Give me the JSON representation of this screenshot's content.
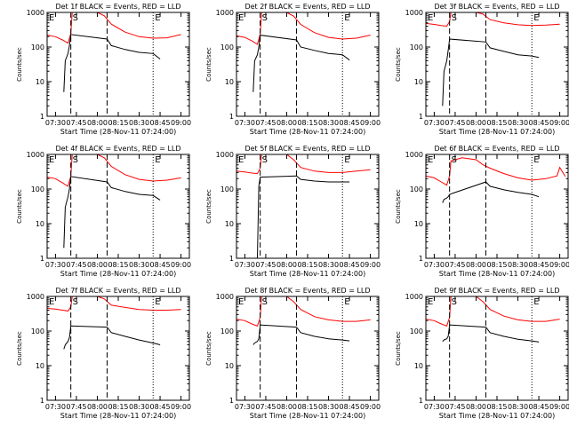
{
  "chart_data": [
    {
      "type": "line",
      "title": "Det 1f BLACK = Events, RED = LLD",
      "xlabel": "Start Time (28-Nov-11 07:24:00)",
      "ylabel": "Counts/sec",
      "log_y": true,
      "ylim": [
        1,
        1000
      ],
      "xlim": [
        "07:24",
        "09:06"
      ],
      "x_ticks": [
        "07:30",
        "07:45",
        "08:00",
        "08:15",
        "08:30",
        "08:45",
        "09:00"
      ],
      "y_ticks": [
        "1",
        "10",
        "100",
        "1000"
      ],
      "markers": [
        {
          "label": "E",
          "time": "07:24",
          "style": "dotted"
        },
        {
          "label": "S",
          "time": "07:41",
          "style": "dashed"
        },
        {
          "label": "",
          "time": "08:07",
          "style": "dashed"
        },
        {
          "label": "E",
          "time": "08:40",
          "style": "dotted"
        }
      ],
      "series": [
        {
          "color": "#ff0000",
          "time": [
            "07:24",
            "07:30",
            "07:35",
            "07:39",
            "07:41",
            "07:42",
            "07:50",
            "08:00",
            "08:05",
            "08:10",
            "08:20",
            "08:30",
            "08:40",
            "08:50",
            "09:00"
          ],
          "values": [
            220,
            200,
            160,
            130,
            250,
            1000,
            1000,
            1000,
            800,
            460,
            270,
            200,
            180,
            185,
            230
          ]
        },
        {
          "color": "#000000",
          "time": [
            "07:36",
            "07:37",
            "07:39",
            "07:40",
            "07:41",
            "08:07",
            "08:10",
            "08:20",
            "08:30",
            "08:40",
            "08:45"
          ],
          "values": [
            5,
            40,
            65,
            110,
            230,
            170,
            110,
            85,
            70,
            65,
            45
          ]
        }
      ]
    },
    {
      "type": "line",
      "title": "Det 2f BLACK = Events, RED = LLD",
      "xlabel": "Start Time (28-Nov-11 07:24:00)",
      "ylabel": "Counts/sec",
      "log_y": true,
      "ylim": [
        1,
        1000
      ],
      "xlim": [
        "07:24",
        "09:06"
      ],
      "x_ticks": [
        "07:30",
        "07:45",
        "08:00",
        "08:15",
        "08:30",
        "08:45",
        "09:00"
      ],
      "y_ticks": [
        "1",
        "10",
        "100",
        "1000"
      ],
      "markers": [
        {
          "label": "E",
          "time": "07:24",
          "style": "dotted"
        },
        {
          "label": "S",
          "time": "07:41",
          "style": "dashed"
        },
        {
          "label": "",
          "time": "08:07",
          "style": "dashed"
        },
        {
          "label": "E",
          "time": "08:40",
          "style": "dotted"
        }
      ],
      "series": [
        {
          "color": "#ff0000",
          "time": [
            "07:24",
            "07:30",
            "07:35",
            "07:39",
            "07:41",
            "07:42",
            "07:50",
            "08:00",
            "08:05",
            "08:10",
            "08:20",
            "08:30",
            "08:40",
            "08:50",
            "09:00"
          ],
          "values": [
            210,
            190,
            150,
            120,
            240,
            1000,
            1000,
            1000,
            780,
            450,
            260,
            190,
            170,
            180,
            220
          ]
        },
        {
          "color": "#000000",
          "time": [
            "07:36",
            "07:37",
            "07:39",
            "07:40",
            "07:41",
            "08:07",
            "08:10",
            "08:20",
            "08:30",
            "08:40",
            "08:45"
          ],
          "values": [
            5,
            40,
            60,
            100,
            220,
            160,
            100,
            80,
            65,
            60,
            42
          ]
        }
      ]
    },
    {
      "type": "line",
      "title": "Det 3f BLACK = Events, RED = LLD",
      "xlabel": "Start Time (28-Nov-11 07:24:00)",
      "ylabel": "Counts/sec",
      "log_y": true,
      "ylim": [
        1,
        1000
      ],
      "xlim": [
        "07:24",
        "09:06"
      ],
      "x_ticks": [
        "07:30",
        "07:45",
        "08:00",
        "08:15",
        "08:30",
        "08:45",
        "09:00"
      ],
      "y_ticks": [
        "1",
        "10",
        "100",
        "1000"
      ],
      "markers": [
        {
          "label": "E",
          "time": "07:24",
          "style": "dotted"
        },
        {
          "label": "S",
          "time": "07:41",
          "style": "dashed"
        },
        {
          "label": "",
          "time": "08:07",
          "style": "dashed"
        },
        {
          "label": "E",
          "time": "08:40",
          "style": "dotted"
        }
      ],
      "series": [
        {
          "color": "#ff0000",
          "time": [
            "07:24",
            "07:30",
            "07:35",
            "07:39",
            "07:41",
            "07:42",
            "07:50",
            "08:00",
            "08:05",
            "08:10",
            "08:20",
            "08:30",
            "08:40",
            "08:50",
            "09:00"
          ],
          "values": [
            480,
            450,
            420,
            400,
            550,
            1000,
            1000,
            1000,
            900,
            620,
            500,
            440,
            420,
            430,
            460
          ]
        },
        {
          "color": "#000000",
          "time": [
            "07:36",
            "07:37",
            "07:39",
            "07:40",
            "07:41",
            "08:07",
            "08:10",
            "08:20",
            "08:30",
            "08:40",
            "08:45"
          ],
          "values": [
            2,
            20,
            40,
            80,
            170,
            140,
            95,
            75,
            60,
            55,
            50
          ]
        }
      ]
    },
    {
      "type": "line",
      "title": "Det 4f BLACK = Events, RED = LLD",
      "xlabel": "Start Time (28-Nov-11 07:24:00)",
      "ylabel": "Counts/sec",
      "log_y": true,
      "ylim": [
        1,
        1000
      ],
      "xlim": [
        "07:24",
        "09:06"
      ],
      "x_ticks": [
        "07:30",
        "07:45",
        "08:00",
        "08:15",
        "08:30",
        "08:45",
        "09:00"
      ],
      "y_ticks": [
        "1",
        "10",
        "100",
        "1000"
      ],
      "markers": [
        {
          "label": "E",
          "time": "07:24",
          "style": "dotted"
        },
        {
          "label": "S",
          "time": "07:41",
          "style": "dashed"
        },
        {
          "label": "",
          "time": "08:07",
          "style": "dashed"
        },
        {
          "label": "E",
          "time": "08:40",
          "style": "dotted"
        }
      ],
      "series": [
        {
          "color": "#ff0000",
          "time": [
            "07:24",
            "07:30",
            "07:35",
            "07:39",
            "07:41",
            "07:42",
            "07:50",
            "08:00",
            "08:05",
            "08:10",
            "08:20",
            "08:30",
            "08:40",
            "08:50",
            "09:00"
          ],
          "values": [
            220,
            200,
            150,
            120,
            240,
            1000,
            1000,
            1000,
            800,
            450,
            260,
            190,
            170,
            180,
            210
          ]
        },
        {
          "color": "#000000",
          "time": [
            "07:36",
            "07:37",
            "07:39",
            "07:40",
            "07:41",
            "08:07",
            "08:10",
            "08:20",
            "08:30",
            "08:40",
            "08:45"
          ],
          "values": [
            2,
            30,
            60,
            100,
            230,
            160,
            110,
            85,
            70,
            65,
            48
          ]
        }
      ]
    },
    {
      "type": "line",
      "title": "Det 5f BLACK = Events, RED = LLD",
      "xlabel": "Start Time (28-Nov-11 07:24:00)",
      "ylabel": "Counts/sec",
      "log_y": true,
      "ylim": [
        1,
        1000
      ],
      "xlim": [
        "07:24",
        "09:06"
      ],
      "x_ticks": [
        "07:30",
        "07:45",
        "08:00",
        "08:15",
        "08:30",
        "08:45",
        "09:00"
      ],
      "y_ticks": [
        "1",
        "10",
        "100",
        "1000"
      ],
      "markers": [
        {
          "label": "E",
          "time": "07:24",
          "style": "dotted"
        },
        {
          "label": "S",
          "time": "07:41",
          "style": "dashed"
        },
        {
          "label": "",
          "time": "08:07",
          "style": "dashed"
        },
        {
          "label": "E",
          "time": "08:40",
          "style": "dotted"
        }
      ],
      "series": [
        {
          "color": "#ff0000",
          "time": [
            "07:24",
            "07:30",
            "07:35",
            "07:39",
            "07:41",
            "07:42",
            "07:50",
            "08:00",
            "08:05",
            "08:10",
            "08:20",
            "08:30",
            "08:40",
            "08:50",
            "09:00"
          ],
          "values": [
            330,
            310,
            290,
            280,
            400,
            1000,
            1000,
            1000,
            700,
            420,
            330,
            300,
            300,
            330,
            360
          ]
        },
        {
          "color": "#000000",
          "time": [
            "07:36",
            "07:37",
            "07:39",
            "07:40",
            "07:41",
            "08:07",
            "08:10",
            "08:20",
            "08:30",
            "08:40",
            "08:45"
          ],
          "values": [
            1,
            1,
            1,
            120,
            220,
            240,
            190,
            170,
            160,
            160,
            160
          ]
        }
      ]
    },
    {
      "type": "line",
      "title": "Det 6f BLACK = Events, RED = LLD",
      "xlabel": "Start Time (28-Nov-11 07:24:00)",
      "ylabel": "Counts/sec",
      "log_y": true,
      "ylim": [
        1,
        1000
      ],
      "xlim": [
        "07:24",
        "09:06"
      ],
      "x_ticks": [
        "07:30",
        "07:45",
        "08:00",
        "08:15",
        "08:30",
        "08:45",
        "09:00"
      ],
      "y_ticks": [
        "1",
        "10",
        "100",
        "1000"
      ],
      "markers": [
        {
          "label": "E",
          "time": "07:24",
          "style": "dotted"
        },
        {
          "label": "S",
          "time": "07:41",
          "style": "dashed"
        },
        {
          "label": "",
          "time": "08:07",
          "style": "dashed"
        },
        {
          "label": "E",
          "time": "08:40",
          "style": "dotted"
        }
      ],
      "series": [
        {
          "color": "#ff0000",
          "time": [
            "07:24",
            "07:30",
            "07:35",
            "07:39",
            "07:41",
            "07:42",
            "07:50",
            "08:00",
            "08:05",
            "08:10",
            "08:20",
            "08:30",
            "08:40",
            "08:50",
            "08:58",
            "09:00",
            "09:04"
          ],
          "values": [
            240,
            210,
            160,
            130,
            240,
            650,
            800,
            700,
            500,
            400,
            280,
            210,
            180,
            200,
            240,
            420,
            230
          ]
        },
        {
          "color": "#000000",
          "time": [
            "07:36",
            "07:37",
            "07:39",
            "07:40",
            "07:41",
            "08:07",
            "08:10",
            "08:20",
            "08:30",
            "08:40",
            "08:45"
          ],
          "values": [
            40,
            50,
            55,
            60,
            70,
            160,
            120,
            95,
            80,
            70,
            60
          ]
        }
      ]
    },
    {
      "type": "line",
      "title": "Det 7f BLACK = Events, RED = LLD",
      "xlabel": "Start Time (28-Nov-11 07:24:00)",
      "ylabel": "Counts/sec",
      "log_y": true,
      "ylim": [
        1,
        1000
      ],
      "xlim": [
        "07:24",
        "09:06"
      ],
      "x_ticks": [
        "07:30",
        "07:45",
        "08:00",
        "08:15",
        "08:30",
        "08:45",
        "09:00"
      ],
      "y_ticks": [
        "1",
        "10",
        "100",
        "1000"
      ],
      "markers": [
        {
          "label": "E",
          "time": "07:24",
          "style": "dotted"
        },
        {
          "label": "S",
          "time": "07:41",
          "style": "dashed"
        },
        {
          "label": "",
          "time": "08:07",
          "style": "dashed"
        },
        {
          "label": "E",
          "time": "08:40",
          "style": "dotted"
        }
      ],
      "series": [
        {
          "color": "#ff0000",
          "time": [
            "07:24",
            "07:30",
            "07:35",
            "07:39",
            "07:41",
            "07:42",
            "07:50",
            "08:00",
            "08:05",
            "08:10",
            "08:20",
            "08:30",
            "08:40",
            "08:50",
            "09:00"
          ],
          "values": [
            450,
            430,
            400,
            380,
            500,
            1000,
            1000,
            1000,
            850,
            560,
            480,
            420,
            400,
            400,
            420
          ]
        },
        {
          "color": "#000000",
          "time": [
            "07:36",
            "07:37",
            "07:39",
            "07:40",
            "07:41",
            "08:07",
            "08:10",
            "08:20",
            "08:30",
            "08:40",
            "08:45"
          ],
          "values": [
            30,
            40,
            50,
            65,
            140,
            130,
            90,
            70,
            55,
            45,
            40
          ]
        }
      ]
    },
    {
      "type": "line",
      "title": "Det 8f BLACK = Events, RED = LLD",
      "xlabel": "Start Time (28-Nov-11 07:24:00)",
      "ylabel": "Counts/sec",
      "log_y": true,
      "ylim": [
        1,
        1000
      ],
      "xlim": [
        "07:24",
        "09:06"
      ],
      "x_ticks": [
        "07:30",
        "07:45",
        "08:00",
        "08:15",
        "08:30",
        "08:45",
        "09:00"
      ],
      "y_ticks": [
        "1",
        "10",
        "100",
        "1000"
      ],
      "markers": [
        {
          "label": "E",
          "time": "07:24",
          "style": "dotted"
        },
        {
          "label": "S",
          "time": "07:41",
          "style": "dashed"
        },
        {
          "label": "",
          "time": "08:07",
          "style": "dashed"
        },
        {
          "label": "E",
          "time": "08:40",
          "style": "dotted"
        }
      ],
      "series": [
        {
          "color": "#ff0000",
          "time": [
            "07:24",
            "07:30",
            "07:35",
            "07:39",
            "07:41",
            "07:42",
            "07:50",
            "08:00",
            "08:05",
            "08:10",
            "08:20",
            "08:30",
            "08:40",
            "08:50",
            "09:00"
          ],
          "values": [
            220,
            200,
            160,
            140,
            250,
            1000,
            1000,
            1000,
            700,
            420,
            260,
            210,
            190,
            190,
            210
          ]
        },
        {
          "color": "#000000",
          "time": [
            "07:36",
            "07:37",
            "07:39",
            "07:40",
            "07:41",
            "08:07",
            "08:10",
            "08:20",
            "08:30",
            "08:40",
            "08:45"
          ],
          "values": [
            40,
            45,
            50,
            60,
            150,
            130,
            90,
            70,
            60,
            55,
            52
          ]
        }
      ]
    },
    {
      "type": "line",
      "title": "Det 9f BLACK = Events, RED = LLD",
      "xlabel": "Start Time (28-Nov-11 07:24:00)",
      "ylabel": "Counts/sec",
      "log_y": true,
      "ylim": [
        1,
        1000
      ],
      "xlim": [
        "07:24",
        "09:06"
      ],
      "x_ticks": [
        "07:30",
        "07:45",
        "08:00",
        "08:15",
        "08:30",
        "08:45",
        "09:00"
      ],
      "y_ticks": [
        "1",
        "10",
        "100",
        "1000"
      ],
      "markers": [
        {
          "label": "E",
          "time": "07:24",
          "style": "dotted"
        },
        {
          "label": "S",
          "time": "07:41",
          "style": "dashed"
        },
        {
          "label": "",
          "time": "08:07",
          "style": "dashed"
        },
        {
          "label": "E",
          "time": "08:40",
          "style": "dotted"
        }
      ],
      "series": [
        {
          "color": "#ff0000",
          "time": [
            "07:24",
            "07:30",
            "07:35",
            "07:39",
            "07:41",
            "07:42",
            "07:50",
            "08:00",
            "08:05",
            "08:10",
            "08:20",
            "08:30",
            "08:40",
            "08:50",
            "09:00"
          ],
          "values": [
            220,
            200,
            160,
            140,
            250,
            1000,
            1000,
            1000,
            700,
            420,
            270,
            210,
            190,
            190,
            220
          ]
        },
        {
          "color": "#000000",
          "time": [
            "07:36",
            "07:37",
            "07:39",
            "07:40",
            "07:41",
            "08:07",
            "08:10",
            "08:20",
            "08:30",
            "08:40",
            "08:45"
          ],
          "values": [
            50,
            55,
            60,
            70,
            150,
            130,
            90,
            70,
            58,
            52,
            48
          ]
        }
      ]
    }
  ]
}
